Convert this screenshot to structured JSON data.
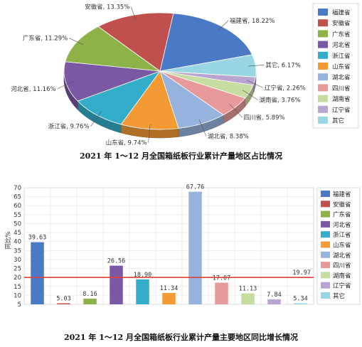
{
  "colors": [
    "#4a79c6",
    "#c0504d",
    "#8db248",
    "#7a58a4",
    "#33adc9",
    "#f39a34",
    "#96b3de",
    "#e69a9a",
    "#c7dca0",
    "#b8a5d2",
    "#99d6e3"
  ],
  "chart_data": [
    {
      "type": "pie",
      "title": "2021 年 1～12 月全国箱纸板行业累计产量地区占比情况",
      "categories": [
        "福建省",
        "安徽省",
        "广东省",
        "河北省",
        "浙江省",
        "山东省",
        "湖北省",
        "四川省",
        "湖南省",
        "辽宁省",
        "其它"
      ],
      "values": [
        18.22,
        13.35,
        11.29,
        11.16,
        9.76,
        9.74,
        8.38,
        5.89,
        3.76,
        2.26,
        6.17
      ],
      "slice_order": [
        "福建省",
        "其它",
        "辽宁省",
        "湖南省",
        "四川省",
        "湖北省",
        "山东省",
        "浙江省",
        "河北省",
        "广东省",
        "安徽省"
      ],
      "data_labels": [
        "福建省, 18.22%",
        "安徽省, 13.35%",
        "广东省, 11.29%",
        "河北省, 11.16%",
        "浙江省, 9.76%",
        "山东省, 9.74%",
        "湖北省, 8.38%",
        "四川省, 5.89%",
        "湖南省, 3.76%",
        "辽宁省, 2.26%",
        "其它, 6.17%"
      ],
      "legend": [
        "福建省",
        "安徽省",
        "广东省",
        "河北省",
        "浙江省",
        "山东省",
        "湖北省",
        "四川省",
        "湖南省",
        "辽宁省",
        "其它"
      ],
      "legend_position": "right"
    },
    {
      "type": "bar",
      "title": "2021 年 1～12 月全国箱纸板行业累计产量主要地区同比增长情况",
      "categories": [
        "福建省",
        "安徽省",
        "广东省",
        "河北省",
        "浙江省",
        "山东省",
        "湖北省",
        "四川省",
        "湖南省",
        "辽宁省",
        "其它"
      ],
      "values": [
        39.63,
        5.03,
        8.16,
        26.56,
        18.9,
        11.34,
        67.76,
        17.07,
        11.13,
        7.84,
        5.34
      ],
      "value_labels": [
        "39.63",
        "5.03",
        "8.16",
        "26.56",
        "18.90",
        "11.34",
        "67.76",
        "17.07",
        "11.13",
        "7.84",
        "5.34"
      ],
      "ylabel": "同比%",
      "ylim": [
        5,
        70
      ],
      "yticks": [
        "70",
        "65",
        "60",
        "55",
        "50",
        "45",
        "40",
        "35",
        "30",
        "25",
        "20",
        "15",
        "10",
        "5"
      ],
      "reference_line": {
        "value": 19.97,
        "label": "19.97",
        "color": "#e0413a"
      },
      "grid": true,
      "legend": [
        "福建省",
        "安徽省",
        "广东省",
        "河北省",
        "浙江省",
        "山东省",
        "湖北省",
        "四川省",
        "湖南省",
        "辽宁省",
        "其它"
      ],
      "legend_position": "right"
    }
  ]
}
